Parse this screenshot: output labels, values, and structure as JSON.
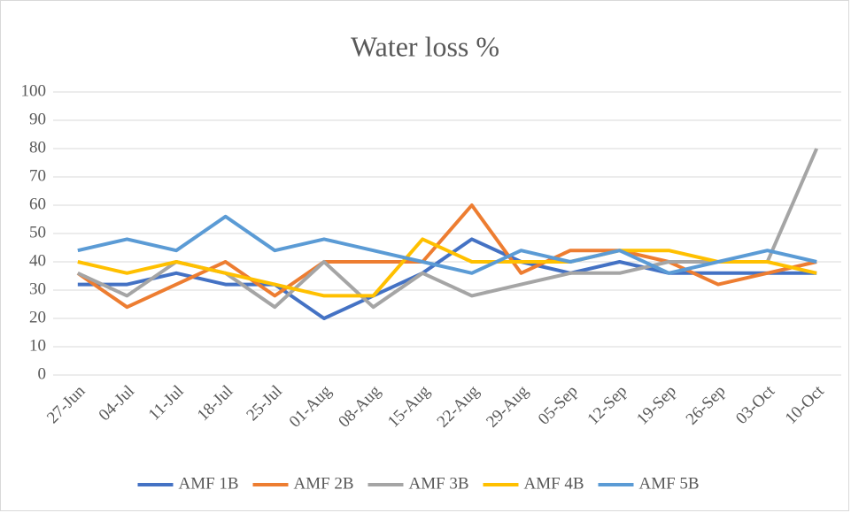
{
  "chart_data": {
    "type": "line",
    "title": "Water loss %",
    "categories": [
      "27-Jun",
      "04-Jul",
      "11-Jul",
      "18-Jul",
      "25-Jul",
      "01-Aug",
      "08-Aug",
      "15-Aug",
      "22-Aug",
      "29-Aug",
      "05-Sep",
      "12-Sep",
      "19-Sep",
      "26-Sep",
      "03-Oct",
      "10-Oct"
    ],
    "series": [
      {
        "name": "AMF 1B",
        "color": "#4472c4",
        "values": [
          32,
          32,
          36,
          32,
          32,
          20,
          28,
          36,
          48,
          40,
          36,
          40,
          36,
          36,
          36,
          36
        ]
      },
      {
        "name": "AMF 2B",
        "color": "#ed7d31",
        "values": [
          36,
          24,
          32,
          40,
          28,
          40,
          40,
          40,
          60,
          36,
          44,
          44,
          40,
          32,
          36,
          40
        ]
      },
      {
        "name": "AMF 3B",
        "color": "#a5a5a5",
        "values": [
          36,
          28,
          40,
          36,
          24,
          40,
          24,
          36,
          28,
          32,
          36,
          36,
          40,
          40,
          40,
          80
        ]
      },
      {
        "name": "AMF 4B",
        "color": "#ffc000",
        "values": [
          40,
          36,
          40,
          36,
          32,
          28,
          28,
          48,
          40,
          40,
          40,
          44,
          44,
          40,
          40,
          36
        ]
      },
      {
        "name": "AMF 5B",
        "color": "#5b9bd5",
        "values": [
          44,
          48,
          44,
          56,
          44,
          48,
          44,
          40,
          36,
          44,
          40,
          44,
          36,
          40,
          44,
          40
        ]
      }
    ],
    "ylim": [
      0,
      100
    ],
    "yticks": [
      0,
      10,
      20,
      30,
      40,
      50,
      60,
      70,
      80,
      90,
      100
    ],
    "grid": true,
    "legend": "bottom"
  }
}
